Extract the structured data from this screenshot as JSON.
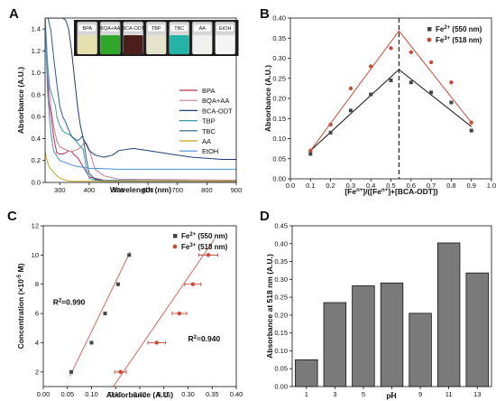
{
  "panels": {
    "a": {
      "letter": "A"
    },
    "b": {
      "letter": "B"
    },
    "c": {
      "letter": "C"
    },
    "d": {
      "letter": "D"
    }
  },
  "chart_data": [
    {
      "panel": "A",
      "type": "line",
      "xlabel": "Wavelength (nm)",
      "ylabel": "Absorbance (A.U.)",
      "xlim": [
        250,
        900
      ],
      "ylim": [
        0.0,
        1.5
      ],
      "xticks": [
        "300",
        "400",
        "500",
        "600",
        "700",
        "800",
        "900"
      ],
      "yticks": [
        "0.0",
        "0.2",
        "0.4",
        "0.6",
        "0.8",
        "1.0",
        "1.2",
        "1.4"
      ],
      "legend_position": "center-right",
      "vials": [
        {
          "label": "BPA",
          "color": "#e4e0b0"
        },
        {
          "label": "BQA+AA",
          "color": "#2fa82a"
        },
        {
          "label": "BCA-ODT",
          "color": "#4a1f1a"
        },
        {
          "label": "TBP",
          "color": "#e6e3cc"
        },
        {
          "label": "TBC",
          "color": "#25b3a8"
        },
        {
          "label": "AA",
          "color": "#f0f0ec"
        },
        {
          "label": "EtOH",
          "color": "#f5f5f5"
        }
      ],
      "series": [
        {
          "name": "BPA",
          "color": "#b5304e",
          "x": [
            250,
            255,
            262,
            270,
            280,
            290,
            300,
            310,
            320,
            330,
            340,
            350,
            360,
            380,
            400,
            450,
            900
          ],
          "y": [
            1.5,
            1.2,
            0.75,
            0.62,
            0.4,
            0.27,
            0.26,
            0.26,
            0.27,
            0.29,
            0.28,
            0.25,
            0.23,
            0.14,
            0.05,
            0.02,
            0.01
          ]
        },
        {
          "name": "BQA+AA",
          "color": "#c87b8d",
          "x": [
            250,
            255,
            260,
            270,
            280,
            290,
            300,
            310,
            320,
            330,
            340,
            350,
            360,
            370,
            380,
            390,
            400,
            420,
            450,
            500,
            900
          ],
          "y": [
            1.5,
            1.3,
            0.95,
            0.68,
            0.5,
            0.38,
            0.33,
            0.31,
            0.3,
            0.29,
            0.28,
            0.29,
            0.3,
            0.32,
            0.35,
            0.36,
            0.3,
            0.12,
            0.06,
            0.03,
            0.02
          ]
        },
        {
          "name": "BCA-ODT",
          "color": "#1f3f78",
          "x": [
            250,
            260,
            270,
            280,
            290,
            300,
            310,
            320,
            330,
            340,
            350,
            360,
            370,
            380,
            400,
            420,
            450,
            480,
            500,
            550,
            600,
            650,
            700,
            750,
            800,
            850,
            900
          ],
          "y": [
            1.5,
            1.5,
            1.5,
            1.5,
            1.5,
            1.5,
            1.5,
            1.48,
            1.4,
            1.2,
            0.95,
            0.7,
            0.52,
            0.4,
            0.29,
            0.25,
            0.23,
            0.25,
            0.29,
            0.31,
            0.29,
            0.27,
            0.25,
            0.23,
            0.22,
            0.21,
            0.21
          ]
        },
        {
          "name": "TBP",
          "color": "#3a9db0",
          "x": [
            250,
            255,
            265,
            275,
            285,
            290,
            300,
            310,
            320,
            330,
            340,
            350,
            360,
            370,
            380,
            390,
            400,
            420,
            900
          ],
          "y": [
            1.5,
            1.2,
            0.88,
            0.78,
            0.7,
            0.6,
            0.52,
            0.47,
            0.45,
            0.44,
            0.42,
            0.39,
            0.36,
            0.33,
            0.3,
            0.12,
            0.04,
            0.02,
            0.01
          ]
        },
        {
          "name": "TBC",
          "color": "#2a5c92",
          "x": [
            250,
            260,
            270,
            280,
            290,
            300,
            310,
            320,
            330,
            340,
            350,
            360,
            370,
            375,
            380,
            390,
            400,
            420,
            450,
            900
          ],
          "y": [
            1.5,
            1.5,
            1.38,
            1.12,
            0.9,
            0.7,
            0.6,
            0.55,
            0.48,
            0.42,
            0.4,
            0.38,
            0.4,
            0.42,
            0.4,
            0.22,
            0.08,
            0.03,
            0.01,
            0.01
          ]
        },
        {
          "name": "AA",
          "color": "#c9a41c",
          "x": [
            250,
            255,
            260,
            265,
            270,
            280,
            290,
            300,
            320,
            340,
            900
          ],
          "y": [
            0.28,
            0.22,
            0.17,
            0.14,
            0.12,
            0.09,
            0.06,
            0.04,
            0.02,
            0.01,
            0.01
          ]
        },
        {
          "name": "EtOH",
          "color": "#4a8fd8",
          "x": [
            250,
            255,
            258,
            262,
            265,
            270,
            275,
            280,
            300,
            350,
            400,
            500,
            700,
            900
          ],
          "y": [
            1.45,
            1.1,
            0.85,
            0.7,
            0.58,
            0.45,
            0.35,
            0.28,
            0.2,
            0.15,
            0.13,
            0.12,
            0.12,
            0.12
          ]
        }
      ]
    },
    {
      "panel": "B",
      "type": "line",
      "xlabel": "[Fe",
      "xlabel_full": "[Fen+]/([Fen+]+[BCA-ODT])",
      "ylabel": "Absorbance (A.U.)",
      "xlim": [
        0.0,
        1.0
      ],
      "ylim": [
        0.0,
        0.4
      ],
      "xticks": [
        "0.0",
        "0.1",
        "0.2",
        "0.3",
        "0.4",
        "0.5",
        "0.6",
        "0.7",
        "0.8",
        "0.9",
        "1.0"
      ],
      "yticks": [
        "0.00",
        "0.05",
        "0.10",
        "0.15",
        "0.20",
        "0.25",
        "0.30",
        "0.35",
        "0.40"
      ],
      "vline_x": 0.54,
      "legend_position": "top-right",
      "series": [
        {
          "name": "Fe2+ (550 nm)",
          "color": "#444444",
          "marker": "square",
          "x": [
            0.1,
            0.2,
            0.3,
            0.4,
            0.5,
            0.6,
            0.7,
            0.8,
            0.9
          ],
          "y": [
            0.062,
            0.115,
            0.17,
            0.21,
            0.245,
            0.24,
            0.215,
            0.19,
            0.12
          ],
          "fit": {
            "x": [
              0.1,
              0.54,
              0.9
            ],
            "y": [
              0.07,
              0.272,
              0.13
            ]
          }
        },
        {
          "name": "Fe3+ (518 nm)",
          "color": "#c84a37",
          "marker": "circle",
          "x": [
            0.1,
            0.2,
            0.3,
            0.4,
            0.5,
            0.6,
            0.7,
            0.8,
            0.9
          ],
          "y": [
            0.07,
            0.135,
            0.225,
            0.28,
            0.325,
            0.315,
            0.29,
            0.24,
            0.14
          ],
          "fit": {
            "x": [
              0.1,
              0.54,
              0.9
            ],
            "y": [
              0.07,
              0.368,
              0.14
            ]
          }
        }
      ]
    },
    {
      "panel": "C",
      "type": "scatter",
      "xlabel": "Absorbance (A.U.)",
      "ylabel_main": "Concentration (×10",
      "ylabel_exp": "-5",
      "ylabel_unit": " M)",
      "xlim": [
        0.0,
        0.4
      ],
      "ylim": [
        1,
        12
      ],
      "xticks": [
        "0.00",
        "0.05",
        "0.10",
        "0.15",
        "0.20",
        "0.25",
        "0.30",
        "0.35",
        "0.40"
      ],
      "yticks": [
        "2",
        "4",
        "6",
        "8",
        "10",
        "12"
      ],
      "legend_position": "top-right",
      "annotations": [
        {
          "text": "R2=0.990",
          "base": "R",
          "sup": "2",
          "rest": "=0.990",
          "x": 0.02,
          "y": 6.6
        },
        {
          "text": "R2=0.940",
          "base": "R",
          "sup": "2",
          "rest": "=0.940",
          "x": 0.3,
          "y": 4.1
        }
      ],
      "series": [
        {
          "name": "Fe2+ (550 nm)",
          "color": "#444444",
          "marker": "square",
          "x": [
            0.058,
            0.1,
            0.128,
            0.155,
            0.178
          ],
          "y": [
            2,
            4,
            6,
            8,
            10
          ],
          "fit": {
            "x": [
              0.055,
              0.18
            ],
            "y": [
              1.7,
              10.2
            ]
          }
        },
        {
          "name": "Fe3+ (518 nm)",
          "color": "#c84a37",
          "marker": "circle",
          "x": [
            0.16,
            0.235,
            0.282,
            0.31,
            0.342
          ],
          "y": [
            2,
            4,
            6,
            8,
            10
          ],
          "xerr": [
            0.012,
            0.018,
            0.015,
            0.017,
            0.02
          ],
          "fit": {
            "x": [
              0.145,
              0.355
            ],
            "y": [
              1.0,
              11.1
            ]
          }
        }
      ]
    },
    {
      "panel": "D",
      "type": "bar",
      "xlabel": "pH",
      "ylabel": "Absorbance at 518 nm (A.U.)",
      "ylim": [
        0.0,
        0.45
      ],
      "yticks": [
        "0.00",
        "0.05",
        "0.10",
        "0.15",
        "0.20",
        "0.25",
        "0.30",
        "0.35",
        "0.40",
        "0.45"
      ],
      "categories": [
        "1",
        "3",
        "5",
        "7",
        "9",
        "11",
        "13"
      ],
      "values": [
        0.075,
        0.235,
        0.282,
        0.29,
        0.205,
        0.402,
        0.318
      ],
      "bar_color": "#7a7a7a"
    }
  ]
}
